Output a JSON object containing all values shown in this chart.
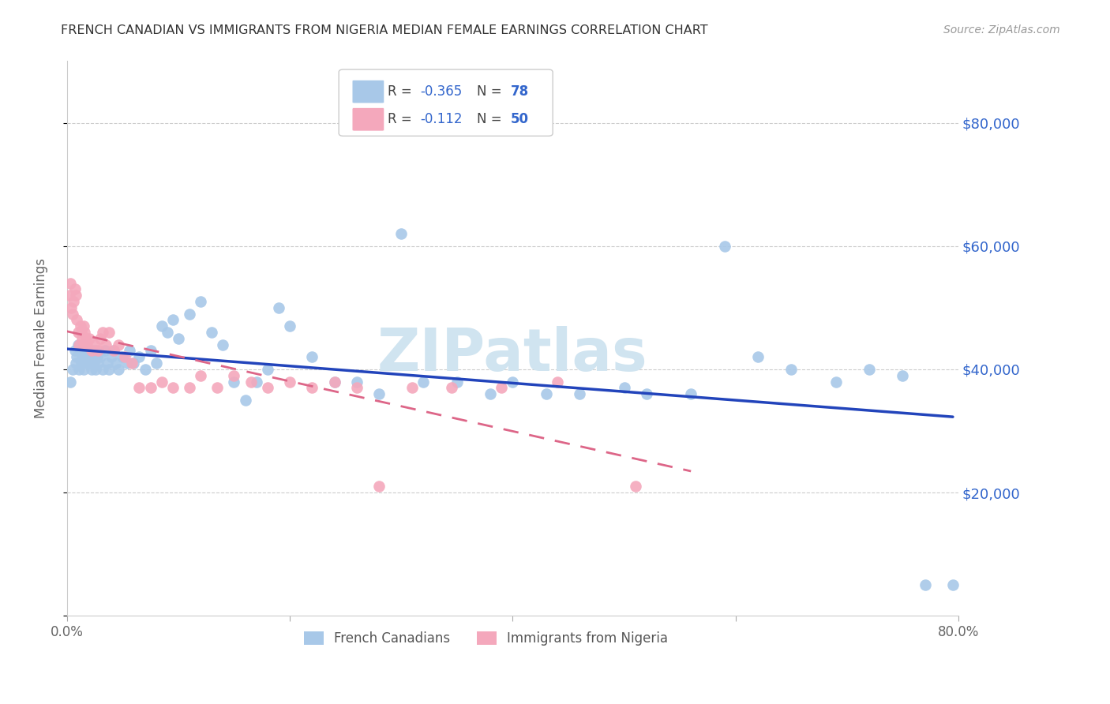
{
  "title": "FRENCH CANADIAN VS IMMIGRANTS FROM NIGERIA MEDIAN FEMALE EARNINGS CORRELATION CHART",
  "source": "Source: ZipAtlas.com",
  "ylabel": "Median Female Earnings",
  "xlim": [
    0.0,
    0.8
  ],
  "ylim": [
    0,
    90000
  ],
  "yticks": [
    0,
    20000,
    40000,
    60000,
    80000
  ],
  "xticks": [
    0.0,
    0.2,
    0.4,
    0.6,
    0.8
  ],
  "xtick_labels": [
    "0.0%",
    "",
    "",
    "",
    "80.0%"
  ],
  "ytick_labels_right": [
    "",
    "$20,000",
    "$40,000",
    "$60,000",
    "$80,000"
  ],
  "legend_label1_bottom": "French Canadians",
  "legend_label2_bottom": "Immigrants from Nigeria",
  "R1": -0.365,
  "N1": 78,
  "R2": -0.112,
  "N2": 50,
  "blue_color": "#a8c8e8",
  "pink_color": "#f4a8bc",
  "line_blue": "#2244bb",
  "line_pink": "#dd6688",
  "title_color": "#333333",
  "axis_label_color": "#666666",
  "tick_color_right": "#3366cc",
  "watermark_color": "#d0e4f0",
  "background_color": "#ffffff",
  "blue_x": [
    0.003,
    0.005,
    0.007,
    0.008,
    0.009,
    0.01,
    0.011,
    0.012,
    0.013,
    0.014,
    0.015,
    0.015,
    0.016,
    0.017,
    0.018,
    0.019,
    0.02,
    0.021,
    0.022,
    0.023,
    0.024,
    0.025,
    0.026,
    0.027,
    0.028,
    0.03,
    0.032,
    0.034,
    0.036,
    0.038,
    0.04,
    0.042,
    0.044,
    0.046,
    0.05,
    0.054,
    0.056,
    0.06,
    0.065,
    0.07,
    0.075,
    0.08,
    0.085,
    0.09,
    0.095,
    0.1,
    0.11,
    0.12,
    0.13,
    0.14,
    0.15,
    0.16,
    0.17,
    0.18,
    0.19,
    0.2,
    0.22,
    0.24,
    0.26,
    0.28,
    0.3,
    0.32,
    0.35,
    0.38,
    0.4,
    0.43,
    0.46,
    0.5,
    0.52,
    0.56,
    0.59,
    0.62,
    0.65,
    0.69,
    0.72,
    0.75,
    0.77,
    0.795
  ],
  "blue_y": [
    38000,
    40000,
    43000,
    41000,
    42000,
    44000,
    40000,
    43000,
    41000,
    42000,
    44000,
    40000,
    42000,
    43000,
    41000,
    42000,
    43000,
    41000,
    40000,
    42000,
    41000,
    43000,
    40000,
    42000,
    41000,
    42000,
    40000,
    43000,
    41000,
    40000,
    42000,
    43000,
    41000,
    40000,
    42000,
    41000,
    43000,
    41000,
    42000,
    40000,
    43000,
    41000,
    47000,
    46000,
    48000,
    45000,
    49000,
    51000,
    46000,
    44000,
    38000,
    35000,
    38000,
    40000,
    50000,
    47000,
    42000,
    38000,
    38000,
    36000,
    62000,
    38000,
    38000,
    36000,
    38000,
    36000,
    36000,
    37000,
    36000,
    36000,
    60000,
    42000,
    40000,
    38000,
    40000,
    39000,
    5000,
    5000
  ],
  "pink_x": [
    0.002,
    0.003,
    0.004,
    0.005,
    0.006,
    0.007,
    0.008,
    0.009,
    0.01,
    0.011,
    0.012,
    0.013,
    0.014,
    0.015,
    0.015,
    0.016,
    0.017,
    0.018,
    0.02,
    0.022,
    0.025,
    0.028,
    0.03,
    0.032,
    0.035,
    0.038,
    0.042,
    0.046,
    0.052,
    0.058,
    0.065,
    0.075,
    0.085,
    0.095,
    0.11,
    0.12,
    0.135,
    0.15,
    0.165,
    0.18,
    0.2,
    0.22,
    0.24,
    0.26,
    0.28,
    0.31,
    0.345,
    0.39,
    0.44,
    0.51
  ],
  "pink_y": [
    52000,
    54000,
    50000,
    49000,
    51000,
    53000,
    52000,
    48000,
    46000,
    44000,
    47000,
    46000,
    45000,
    47000,
    44000,
    46000,
    45000,
    44000,
    45000,
    43000,
    44000,
    43000,
    45000,
    46000,
    44000,
    46000,
    43000,
    44000,
    42000,
    41000,
    37000,
    37000,
    38000,
    37000,
    37000,
    39000,
    37000,
    39000,
    38000,
    37000,
    38000,
    37000,
    38000,
    37000,
    21000,
    37000,
    37000,
    37000,
    38000,
    21000
  ]
}
